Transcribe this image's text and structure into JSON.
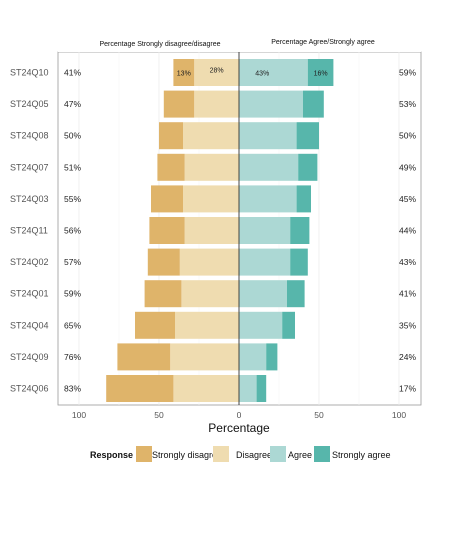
{
  "chart_data": {
    "type": "bar",
    "orientation": "horizontal-diverging",
    "left_title": "Percentage Strongly disagree/disagree",
    "right_title": "Percentage Agree/Strongly agree",
    "xlabel": "Percentage",
    "xlim": [
      -100,
      100
    ],
    "xticks": [
      -100,
      -50,
      0,
      50,
      100
    ],
    "xtick_labels": [
      "100",
      "50",
      "0",
      "50",
      "100"
    ],
    "legend_title": "Response",
    "legend_position": "bottom",
    "colors": {
      "Strongly disagree": "#dfb46a",
      "Disagree": "#efdcb0",
      "Agree": "#acd8d4",
      "Strongly agree": "#57b6ab"
    },
    "categories": [
      "ST24Q10",
      "ST24Q05",
      "ST24Q08",
      "ST24Q07",
      "ST24Q03",
      "ST24Q11",
      "ST24Q02",
      "ST24Q01",
      "ST24Q04",
      "ST24Q09",
      "ST24Q06"
    ],
    "series": [
      {
        "name": "Strongly disagree",
        "values": [
          13,
          19,
          15,
          17,
          20,
          22,
          20,
          23,
          25,
          33,
          42
        ]
      },
      {
        "name": "Disagree",
        "values": [
          28,
          28,
          35,
          34,
          35,
          34,
          37,
          36,
          40,
          43,
          41
        ]
      },
      {
        "name": "Agree",
        "values": [
          43,
          40,
          36,
          37,
          36,
          32,
          32,
          30,
          27,
          17,
          11
        ]
      },
      {
        "name": "Strongly agree",
        "values": [
          16,
          13,
          14,
          12,
          9,
          12,
          11,
          11,
          8,
          7,
          6
        ]
      }
    ],
    "left_percent_labels": [
      "41%",
      "47%",
      "50%",
      "51%",
      "55%",
      "56%",
      "57%",
      "59%",
      "65%",
      "76%",
      "83%"
    ],
    "right_percent_labels": [
      "59%",
      "53%",
      "50%",
      "49%",
      "45%",
      "44%",
      "43%",
      "41%",
      "35%",
      "24%",
      "17%"
    ],
    "segment_labels_first_row": {
      "Strongly disagree": "13%",
      "Disagree": "28%",
      "Agree": "43%",
      "Strongly agree": "16%"
    }
  }
}
